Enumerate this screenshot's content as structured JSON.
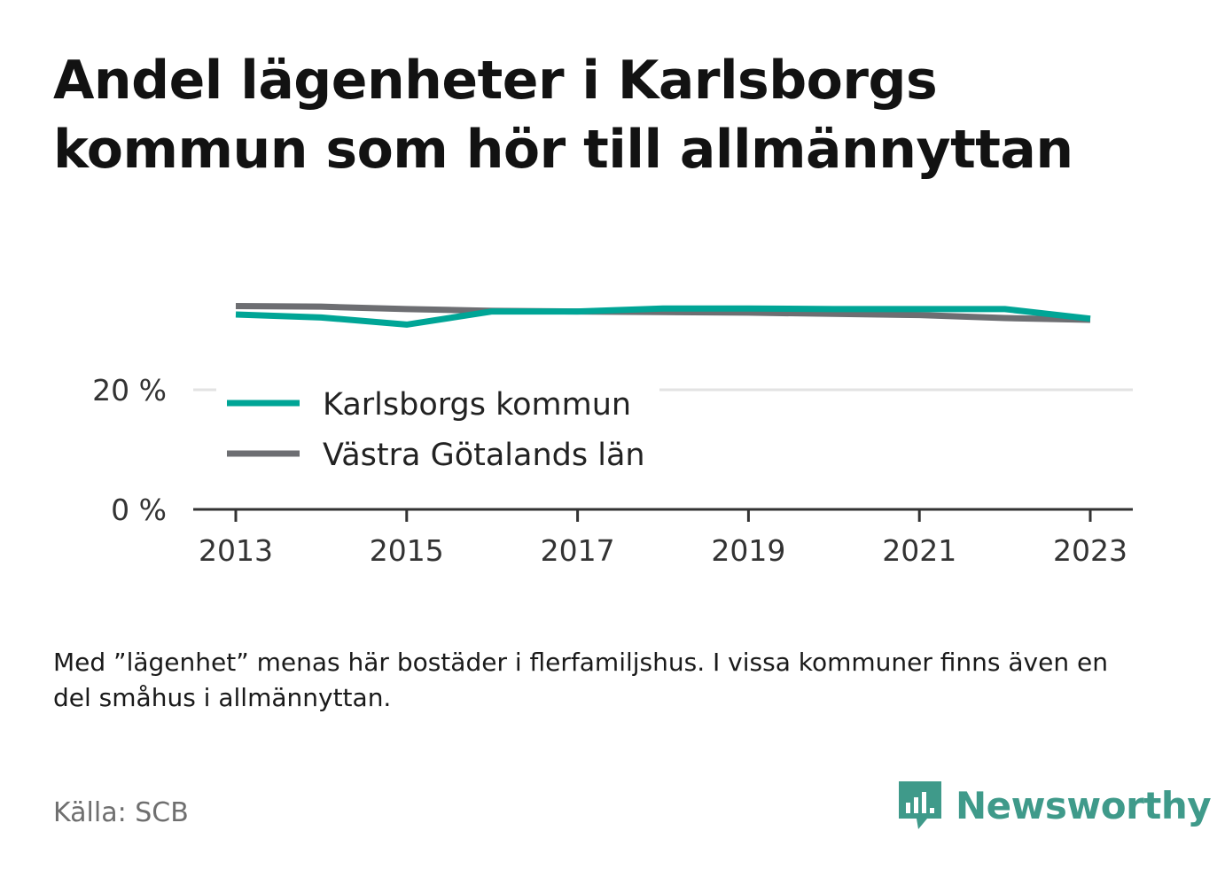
{
  "title": "Andel lägenheter i Karlsborgs kommun som hör till allmännyttan",
  "note": "Med ”lägenhet” menas här bostäder i flerfamiljshus. I vissa kommuner finns även en del småhus i allmännyttan.",
  "source": "Källa: SCB",
  "brand": {
    "name": "Newsworthy",
    "icon": "newsworthy-logo-icon",
    "color": "#3f9a8a"
  },
  "chart_data": {
    "type": "line",
    "x": [
      2013,
      2014,
      2015,
      2016,
      2017,
      2018,
      2019,
      2020,
      2021,
      2022,
      2023
    ],
    "x_ticks": [
      "2013",
      "2015",
      "2017",
      "2019",
      "2021",
      "2023"
    ],
    "y_ticks": [
      "0 %",
      "20 %"
    ],
    "y_tick_values": [
      0,
      20
    ],
    "ylim": [
      0,
      35
    ],
    "grid": true,
    "legend_placement": "inside-left",
    "series": [
      {
        "name": "Karlsborgs kommun",
        "color": "#00a596",
        "values": [
          32.6,
          32.1,
          30.9,
          33.1,
          33.1,
          33.6,
          33.6,
          33.5,
          33.5,
          33.5,
          31.9
        ]
      },
      {
        "name": "Västra Götalands län",
        "color": "#6d6e72",
        "values": [
          34.0,
          33.9,
          33.5,
          33.2,
          33.1,
          33.0,
          32.9,
          32.7,
          32.5,
          32.0,
          31.7
        ]
      }
    ]
  }
}
